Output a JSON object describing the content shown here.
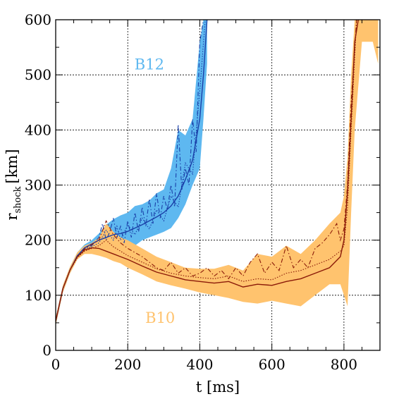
{
  "chart_data": {
    "type": "line",
    "xlabel": "t [ms]",
    "ylabel_main": "r",
    "ylabel_sub": "shock",
    "ylabel_unit": "[km]",
    "xlim": [
      0,
      900
    ],
    "ylim": [
      0,
      600
    ],
    "xticks": [
      0,
      200,
      400,
      600,
      800
    ],
    "yticks": [
      0,
      100,
      200,
      300,
      400,
      500,
      600
    ],
    "xgrid": [
      200,
      400,
      600,
      800
    ],
    "ygrid": [
      100,
      200,
      300,
      400,
      500
    ],
    "grid": true,
    "series": [
      {
        "name": "B12",
        "label_pos": [
          260,
          510
        ],
        "band_color": "#5eb8f0",
        "line_color": "#1a3fa8",
        "label_color": "#5eb8f0",
        "band": [
          [
            0,
            45,
            60
          ],
          [
            20,
            105,
            118
          ],
          [
            40,
            140,
            152
          ],
          [
            60,
            165,
            178
          ],
          [
            80,
            180,
            192
          ],
          [
            100,
            186,
            200
          ],
          [
            120,
            188,
            212
          ],
          [
            140,
            185,
            228
          ],
          [
            160,
            180,
            238
          ],
          [
            180,
            178,
            245
          ],
          [
            200,
            185,
            250
          ],
          [
            220,
            190,
            262
          ],
          [
            240,
            200,
            265
          ],
          [
            260,
            205,
            272
          ],
          [
            280,
            210,
            285
          ],
          [
            300,
            215,
            292
          ],
          [
            320,
            222,
            330
          ],
          [
            340,
            240,
            400
          ],
          [
            360,
            265,
            390
          ],
          [
            380,
            300,
            420
          ],
          [
            400,
            330,
            560
          ],
          [
            410,
            420,
            600
          ],
          [
            420,
            520,
            600
          ]
        ],
        "mean": [
          [
            0,
            53
          ],
          [
            20,
            112
          ],
          [
            40,
            146
          ],
          [
            60,
            172
          ],
          [
            80,
            186
          ],
          [
            100,
            193
          ],
          [
            120,
            200
          ],
          [
            140,
            205
          ],
          [
            160,
            210
          ],
          [
            180,
            212
          ],
          [
            200,
            216
          ],
          [
            220,
            222
          ],
          [
            240,
            228
          ],
          [
            260,
            235
          ],
          [
            280,
            242
          ],
          [
            300,
            250
          ],
          [
            320,
            262
          ],
          [
            340,
            280
          ],
          [
            360,
            310
          ],
          [
            380,
            345
          ],
          [
            400,
            420
          ],
          [
            410,
            500
          ],
          [
            420,
            600
          ]
        ],
        "dashdot": [
          [
            0,
            53
          ],
          [
            20,
            112
          ],
          [
            40,
            146
          ],
          [
            60,
            172
          ],
          [
            80,
            186
          ],
          [
            100,
            190
          ],
          [
            120,
            205
          ],
          [
            130,
            230
          ],
          [
            140,
            200
          ],
          [
            150,
            215
          ],
          [
            160,
            240
          ],
          [
            170,
            205
          ],
          [
            180,
            225
          ],
          [
            190,
            195
          ],
          [
            200,
            235
          ],
          [
            210,
            205
          ],
          [
            220,
            250
          ],
          [
            230,
            215
          ],
          [
            240,
            260
          ],
          [
            250,
            225
          ],
          [
            260,
            275
          ],
          [
            270,
            230
          ],
          [
            280,
            285
          ],
          [
            290,
            240
          ],
          [
            300,
            280
          ],
          [
            310,
            255
          ],
          [
            320,
            300
          ],
          [
            330,
            260
          ],
          [
            340,
            410
          ],
          [
            350,
            290
          ],
          [
            360,
            330
          ],
          [
            370,
            300
          ],
          [
            380,
            420
          ],
          [
            390,
            360
          ],
          [
            400,
            560
          ],
          [
            410,
            600
          ]
        ],
        "dotted": [
          [
            0,
            53
          ],
          [
            20,
            112
          ],
          [
            40,
            146
          ],
          [
            60,
            172
          ],
          [
            80,
            184
          ],
          [
            100,
            188
          ],
          [
            120,
            195
          ],
          [
            140,
            218
          ],
          [
            160,
            200
          ],
          [
            170,
            225
          ],
          [
            180,
            200
          ],
          [
            200,
            228
          ],
          [
            220,
            210
          ],
          [
            240,
            240
          ],
          [
            260,
            220
          ],
          [
            280,
            255
          ],
          [
            300,
            235
          ],
          [
            320,
            280
          ],
          [
            340,
            260
          ],
          [
            360,
            340
          ],
          [
            380,
            320
          ],
          [
            400,
            470
          ],
          [
            415,
            600
          ]
        ]
      },
      {
        "name": "B10",
        "label_pos": [
          290,
          50
        ],
        "band_color": "#ffc36e",
        "line_color": "#8b1a08",
        "label_color": "#ffc36e",
        "band": [
          [
            0,
            45,
            60
          ],
          [
            20,
            105,
            118
          ],
          [
            40,
            140,
            152
          ],
          [
            60,
            165,
            178
          ],
          [
            80,
            175,
            190
          ],
          [
            100,
            175,
            195
          ],
          [
            120,
            172,
            205
          ],
          [
            140,
            168,
            230
          ],
          [
            160,
            162,
            215
          ],
          [
            180,
            158,
            205
          ],
          [
            200,
            150,
            200
          ],
          [
            240,
            138,
            185
          ],
          [
            280,
            125,
            170
          ],
          [
            320,
            118,
            160
          ],
          [
            360,
            112,
            150
          ],
          [
            400,
            105,
            148
          ],
          [
            440,
            100,
            148
          ],
          [
            480,
            95,
            155
          ],
          [
            520,
            88,
            145
          ],
          [
            560,
            85,
            175
          ],
          [
            600,
            90,
            170
          ],
          [
            640,
            85,
            190
          ],
          [
            680,
            80,
            175
          ],
          [
            720,
            100,
            200
          ],
          [
            760,
            120,
            230
          ],
          [
            790,
            120,
            250
          ],
          [
            800,
            100,
            280
          ],
          [
            810,
            80,
            350
          ],
          [
            820,
            250,
            500
          ],
          [
            830,
            400,
            600
          ],
          [
            850,
            560,
            600
          ],
          [
            880,
            560,
            600
          ],
          [
            895,
            520,
            600
          ]
        ],
        "mean": [
          [
            0,
            53
          ],
          [
            20,
            112
          ],
          [
            40,
            146
          ],
          [
            60,
            170
          ],
          [
            80,
            182
          ],
          [
            100,
            186
          ],
          [
            120,
            185
          ],
          [
            140,
            180
          ],
          [
            160,
            175
          ],
          [
            180,
            170
          ],
          [
            200,
            165
          ],
          [
            240,
            153
          ],
          [
            280,
            142
          ],
          [
            320,
            135
          ],
          [
            360,
            128
          ],
          [
            400,
            125
          ],
          [
            440,
            122
          ],
          [
            480,
            125
          ],
          [
            520,
            115
          ],
          [
            560,
            120
          ],
          [
            600,
            118
          ],
          [
            640,
            125
          ],
          [
            680,
            130
          ],
          [
            720,
            140
          ],
          [
            760,
            150
          ],
          [
            790,
            170
          ],
          [
            800,
            200
          ],
          [
            810,
            290
          ],
          [
            820,
            420
          ],
          [
            830,
            560
          ],
          [
            840,
            600
          ]
        ],
        "dashdot": [
          [
            0,
            53
          ],
          [
            20,
            112
          ],
          [
            40,
            146
          ],
          [
            60,
            170
          ],
          [
            80,
            184
          ],
          [
            100,
            192
          ],
          [
            120,
            200
          ],
          [
            140,
            235
          ],
          [
            160,
            210
          ],
          [
            180,
            195
          ],
          [
            200,
            185
          ],
          [
            240,
            170
          ],
          [
            280,
            150
          ],
          [
            300,
            145
          ],
          [
            320,
            160
          ],
          [
            340,
            140
          ],
          [
            360,
            150
          ],
          [
            380,
            135
          ],
          [
            400,
            140
          ],
          [
            420,
            150
          ],
          [
            440,
            135
          ],
          [
            460,
            145
          ],
          [
            480,
            130
          ],
          [
            500,
            150
          ],
          [
            520,
            135
          ],
          [
            540,
            160
          ],
          [
            560,
            175
          ],
          [
            580,
            140
          ],
          [
            600,
            160
          ],
          [
            620,
            145
          ],
          [
            640,
            190
          ],
          [
            660,
            150
          ],
          [
            680,
            165
          ],
          [
            700,
            150
          ],
          [
            720,
            185
          ],
          [
            740,
            195
          ],
          [
            760,
            210
          ],
          [
            780,
            230
          ],
          [
            790,
            200
          ],
          [
            800,
            220
          ],
          [
            810,
            300
          ],
          [
            820,
            450
          ],
          [
            835,
            600
          ]
        ],
        "dotted": [
          [
            0,
            53
          ],
          [
            20,
            112
          ],
          [
            40,
            146
          ],
          [
            60,
            168
          ],
          [
            80,
            180
          ],
          [
            100,
            185
          ],
          [
            120,
            190
          ],
          [
            140,
            200
          ],
          [
            160,
            188
          ],
          [
            180,
            180
          ],
          [
            200,
            172
          ],
          [
            240,
            160
          ],
          [
            280,
            148
          ],
          [
            320,
            140
          ],
          [
            360,
            135
          ],
          [
            400,
            132
          ],
          [
            440,
            130
          ],
          [
            480,
            135
          ],
          [
            520,
            125
          ],
          [
            560,
            130
          ],
          [
            600,
            128
          ],
          [
            640,
            140
          ],
          [
            680,
            145
          ],
          [
            720,
            155
          ],
          [
            760,
            165
          ],
          [
            790,
            180
          ],
          [
            800,
            190
          ],
          [
            810,
            260
          ],
          [
            820,
            400
          ],
          [
            835,
            600
          ]
        ]
      }
    ]
  }
}
